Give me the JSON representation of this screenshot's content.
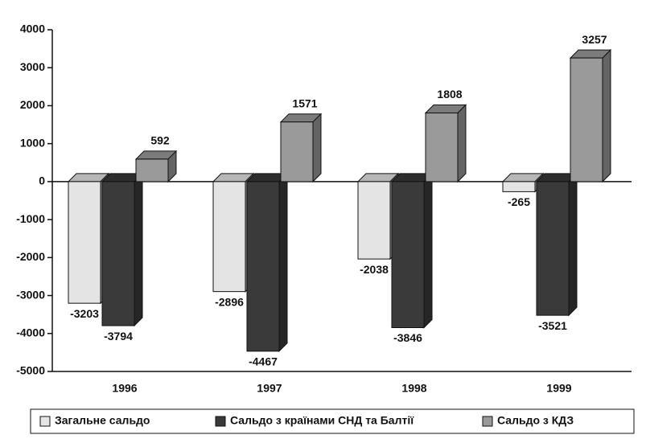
{
  "chart_data": {
    "type": "bar",
    "categories": [
      "1996",
      "1997",
      "1998",
      "1999"
    ],
    "series": [
      {
        "name": "Загальне сальдо",
        "color": "#e4e4e4",
        "values": [
          -3203,
          -2896,
          -2038,
          -265
        ]
      },
      {
        "name": "Сальдо з країнами СНД та Балтії",
        "color": "#3a3a3a",
        "values": [
          -3794,
          -4467,
          -3846,
          -3521
        ]
      },
      {
        "name": "Сальдо з КДЗ",
        "color": "#9a9a9a",
        "values": [
          592,
          1571,
          1808,
          3257
        ]
      }
    ],
    "ylim": [
      -5000,
      4000
    ],
    "yticks": [
      -5000,
      -4000,
      -3000,
      -2000,
      -1000,
      0,
      1000,
      2000,
      3000,
      4000
    ],
    "grid": false,
    "legend": "bottom"
  }
}
